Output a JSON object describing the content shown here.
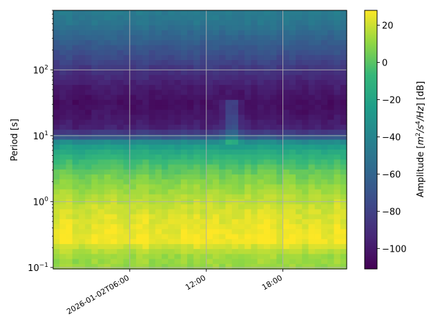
{
  "chart_data": {
    "type": "heatmap",
    "title": "",
    "xlabel": "",
    "ylabel": "Period [s]",
    "x_axis": {
      "kind": "time",
      "range": [
        "2026-01-02T00:00",
        "2026-01-02T23:00"
      ],
      "ticks": [
        {
          "value": "2026-01-02T06:00",
          "label": "2026-01-02T06:00"
        },
        {
          "value": "2026-01-02T12:00",
          "label": "12:00"
        },
        {
          "value": "2026-01-02T18:00",
          "label": "18:00"
        }
      ]
    },
    "y_axis": {
      "scale": "log",
      "range": [
        0.095,
        800
      ],
      "ticks": [
        {
          "value": 0.1,
          "label": "10",
          "exp": "−1"
        },
        {
          "value": 1,
          "label": "10",
          "exp": "0"
        },
        {
          "value": 10,
          "label": "10",
          "exp": "1"
        },
        {
          "value": 100,
          "label": "10",
          "exp": "2"
        }
      ]
    },
    "grid": true,
    "colormap": "viridis",
    "colorbar": {
      "label": "Amplitude [m²/s⁴/Hz] [dB]",
      "label_parts": {
        "pre": "Amplitude [",
        "m": "m",
        "sup1": "2",
        "mid": "/s",
        "sup2": "4",
        "hz": "/Hz",
        "post": "] [dB]"
      },
      "range": [
        -111,
        28
      ],
      "ticks": [
        20,
        0,
        -20,
        -40,
        -60,
        -80,
        -100
      ],
      "tick_labels": [
        "20",
        "0",
        "−20",
        "−40",
        "−60",
        "−80",
        "−100"
      ]
    },
    "profile": {
      "log10_period": [
        2.9,
        2.7,
        2.5,
        2.3,
        2.1,
        1.9,
        1.7,
        1.5,
        1.3,
        1.1,
        0.95,
        0.9,
        0.8,
        0.6,
        0.4,
        0.2,
        0.0,
        -0.2,
        -0.4,
        -0.6,
        -0.7,
        -0.85,
        -1.02
      ],
      "amplitude_db": [
        -45,
        -50,
        -60,
        -70,
        -80,
        -92,
        -100,
        -105,
        -102,
        -95,
        -60,
        -35,
        -20,
        -5,
        5,
        12,
        18,
        22,
        25,
        27,
        20,
        12,
        12
      ]
    },
    "event": {
      "time": "2026-01-02T14:00",
      "period_range": [
        8,
        35
      ],
      "amplitude_shift_db": 30
    }
  }
}
